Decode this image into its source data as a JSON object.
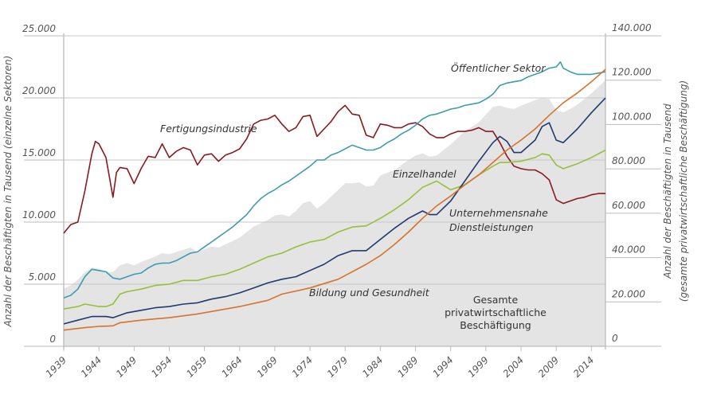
{
  "chart_data": {
    "type": "line",
    "title": "",
    "xlabel": "",
    "ylabel": "Anzahl der Beschäftigten in Tausend (einzelne Sektoren)",
    "ylabel_right": [
      "Anzahl der Beschäftigten in Tausend",
      "(gesamte privatwirtschaftliche Beschäftigung)"
    ],
    "xlim": [
      1939,
      2016
    ],
    "ylim": [
      0,
      25000
    ],
    "ylim_right": [
      0,
      140000
    ],
    "x_ticks": [
      "1939",
      "1944",
      "1949",
      "1954",
      "1959",
      "1964",
      "1969",
      "1974",
      "1979",
      "1984",
      "1989",
      "1994",
      "1999",
      "2004",
      "2009",
      "2014"
    ],
    "y_ticks_left": [
      "0",
      "5.000",
      "10.000",
      "15.000",
      "20.000",
      "25.000"
    ],
    "y_ticks_right": [
      "0",
      "20.000",
      "40.000",
      "60.000",
      "80.000",
      "100.000",
      "120.000",
      "140.000"
    ],
    "grid": true,
    "legend": "inline labels",
    "area": {
      "name": "Gesamte privatwirtschaftliche Beschäftigung",
      "label_lines": [
        "Gesamte",
        "privatwirtschaftliche",
        "Beschäftigung"
      ],
      "axis": "right",
      "color": "#e4e4e4",
      "x": [
        1939,
        1940,
        1941,
        1942,
        1943,
        1944,
        1945,
        1946,
        1947,
        1948,
        1949,
        1950,
        1952,
        1953,
        1954,
        1956,
        1957,
        1958,
        1960,
        1961,
        1962,
        1964,
        1966,
        1968,
        1969,
        1970,
        1971,
        1972,
        1973,
        1974,
        1975,
        1976,
        1978,
        1979,
        1980,
        1981,
        1982,
        1983,
        1984,
        1986,
        1988,
        1989,
        1990,
        1991,
        1992,
        1994,
        1996,
        1998,
        2000,
        2001,
        2002,
        2003,
        2004,
        2006,
        2007,
        2008,
        2009,
        2010,
        2011,
        2012,
        2014,
        2016
      ],
      "values": [
        26000,
        27500,
        30000,
        33500,
        35500,
        35000,
        33500,
        33500,
        36500,
        37500,
        36500,
        38000,
        40500,
        42000,
        41500,
        43500,
        44500,
        42500,
        45000,
        44500,
        46000,
        49000,
        54000,
        57000,
        59000,
        59500,
        58500,
        61000,
        64500,
        65500,
        62000,
        64500,
        70500,
        73500,
        73500,
        74000,
        72000,
        72500,
        77000,
        79500,
        84000,
        86000,
        87000,
        85500,
        86000,
        91000,
        97000,
        101000,
        108000,
        108500,
        107500,
        107000,
        108500,
        111000,
        112000,
        111500,
        106500,
        105500,
        107000,
        109000,
        114000,
        120000
      ]
    },
    "series": [
      {
        "name": "Fertigungsindustrie",
        "axis": "left",
        "color": "#8b1a1f",
        "x": [
          1939,
          1940,
          1941,
          1942,
          1943,
          1943.5,
          1944,
          1945,
          1946,
          1946.5,
          1947,
          1948,
          1949,
          1950,
          1951,
          1952,
          1953,
          1954,
          1955,
          1956,
          1957,
          1958,
          1959,
          1960,
          1961,
          1962,
          1963,
          1964,
          1965,
          1966,
          1967,
          1968,
          1969,
          1970,
          1971,
          1972,
          1973,
          1974,
          1975,
          1976,
          1977,
          1978,
          1979,
          1980,
          1981,
          1982,
          1983,
          1984,
          1985,
          1986,
          1987,
          1988,
          1989,
          1990,
          1991,
          1992,
          1993,
          1994,
          1995,
          1996,
          1997,
          1998,
          1999,
          2000,
          2001,
          2002,
          2003,
          2004,
          2005,
          2006,
          2007,
          2008,
          2009,
          2010,
          2011,
          2012,
          2013,
          2014,
          2015,
          2016
        ],
        "values": [
          9100,
          9800,
          10000,
          12500,
          15500,
          16500,
          16300,
          15200,
          12000,
          14000,
          14400,
          14300,
          13100,
          14300,
          15300,
          15200,
          16300,
          15200,
          15700,
          16000,
          15800,
          14600,
          15400,
          15500,
          14900,
          15400,
          15600,
          15900,
          16700,
          17900,
          18200,
          18300,
          18600,
          17900,
          17300,
          17600,
          18500,
          18600,
          16900,
          17500,
          18100,
          18900,
          19400,
          18700,
          18600,
          17000,
          16800,
          17900,
          17800,
          17600,
          17600,
          17900,
          18000,
          17700,
          17100,
          16800,
          16800,
          17100,
          17300,
          17300,
          17400,
          17600,
          17300,
          17300,
          16400,
          15300,
          14500,
          14300,
          14200,
          14200,
          13900,
          13400,
          11800,
          11500,
          11700,
          11900,
          12000,
          12200,
          12300,
          12300
        ]
      },
      {
        "name": "Öffentlicher Sektor",
        "axis": "left",
        "color": "#3c9db0",
        "x": [
          1939,
          1940,
          1941,
          1942,
          1943,
          1944,
          1945,
          1946,
          1947,
          1948,
          1949,
          1950,
          1951,
          1952,
          1953,
          1954,
          1955,
          1956,
          1957,
          1958,
          1959,
          1960,
          1961,
          1962,
          1963,
          1964,
          1965,
          1966,
          1967,
          1968,
          1969,
          1970,
          1971,
          1972,
          1973,
          1974,
          1975,
          1976,
          1977,
          1978,
          1979,
          1980,
          1981,
          1982,
          1983,
          1984,
          1985,
          1986,
          1987,
          1988,
          1989,
          1990,
          1991,
          1992,
          1993,
          1994,
          1995,
          1996,
          1997,
          1998,
          1999,
          2000,
          2001,
          2002,
          2003,
          2004,
          2005,
          2006,
          2007,
          2008,
          2009,
          2009.6,
          2010,
          2011,
          2012,
          2013,
          2014,
          2015,
          2016
        ],
        "values": [
          3900,
          4100,
          4600,
          5600,
          6200,
          6100,
          6000,
          5500,
          5400,
          5600,
          5800,
          5900,
          6300,
          6600,
          6700,
          6700,
          6900,
          7200,
          7500,
          7600,
          8000,
          8400,
          8800,
          9200,
          9600,
          10100,
          10600,
          11300,
          11900,
          12300,
          12600,
          13000,
          13300,
          13700,
          14100,
          14500,
          15000,
          15000,
          15400,
          15600,
          15900,
          16200,
          16000,
          15800,
          15800,
          16000,
          16400,
          16700,
          17100,
          17400,
          17800,
          18300,
          18600,
          18700,
          18900,
          19100,
          19200,
          19400,
          19500,
          19600,
          19900,
          20300,
          21000,
          21200,
          21300,
          21400,
          21700,
          21900,
          22100,
          22400,
          22500,
          22900,
          22400,
          22100,
          21900,
          21900,
          21900,
          22000,
          22100
        ]
      },
      {
        "name": "Einzelhandel",
        "axis": "left",
        "color": "#98bf3c",
        "x": [
          1939,
          1940,
          1941,
          1942,
          1943,
          1944,
          1945,
          1946,
          1947,
          1948,
          1950,
          1952,
          1954,
          1956,
          1958,
          1960,
          1962,
          1964,
          1966,
          1968,
          1970,
          1972,
          1974,
          1976,
          1978,
          1980,
          1982,
          1984,
          1986,
          1988,
          1990,
          1992,
          1994,
          1996,
          1998,
          2000,
          2001,
          2002,
          2004,
          2006,
          2007,
          2008,
          2009,
          2010,
          2012,
          2014,
          2016
        ],
        "values": [
          3000,
          3100,
          3200,
          3400,
          3300,
          3200,
          3200,
          3400,
          4200,
          4400,
          4600,
          4900,
          5000,
          5300,
          5300,
          5600,
          5800,
          6200,
          6700,
          7200,
          7500,
          8000,
          8400,
          8600,
          9200,
          9600,
          9700,
          10300,
          11000,
          11800,
          12800,
          13300,
          12600,
          13000,
          13800,
          14500,
          14800,
          14800,
          14900,
          15200,
          15500,
          15400,
          14600,
          14300,
          14700,
          15200,
          15800
        ]
      },
      {
        "name": "Unternehmensnahe Dienstleistungen",
        "axis": "left",
        "color": "#1f3a6e",
        "x": [
          1939,
          1941,
          1943,
          1945,
          1946,
          1948,
          1950,
          1952,
          1954,
          1956,
          1958,
          1960,
          1962,
          1964,
          1966,
          1968,
          1970,
          1972,
          1974,
          1976,
          1978,
          1980,
          1982,
          1984,
          1986,
          1988,
          1990,
          1991,
          1992,
          1994,
          1996,
          1998,
          2000,
          2001,
          2002,
          2003,
          2004,
          2006,
          2007,
          2008,
          2009,
          2010,
          2012,
          2014,
          2016
        ],
        "values": [
          1800,
          2100,
          2400,
          2400,
          2300,
          2700,
          2900,
          3100,
          3200,
          3400,
          3500,
          3800,
          4000,
          4300,
          4700,
          5100,
          5400,
          5600,
          6100,
          6600,
          7300,
          7700,
          7700,
          8600,
          9500,
          10300,
          10900,
          10600,
          10600,
          11700,
          13300,
          14900,
          16400,
          16900,
          16500,
          15600,
          15600,
          16600,
          17700,
          18000,
          16600,
          16400,
          17500,
          18800,
          20000
        ]
      },
      {
        "name": "Bildung und Gesundheit",
        "axis": "left",
        "color": "#d9722b",
        "x": [
          1939,
          1942,
          1944,
          1946,
          1947,
          1950,
          1954,
          1958,
          1960,
          1964,
          1968,
          1970,
          1974,
          1978,
          1980,
          1982,
          1984,
          1986,
          1988,
          1990,
          1992,
          1994,
          1996,
          1998,
          2000,
          2002,
          2004,
          2006,
          2008,
          2010,
          2012,
          2014,
          2016
        ],
        "values": [
          1300,
          1500,
          1600,
          1650,
          1900,
          2100,
          2300,
          2600,
          2800,
          3200,
          3700,
          4200,
          4700,
          5400,
          6000,
          6600,
          7300,
          8200,
          9200,
          10300,
          11300,
          12100,
          13000,
          13800,
          14800,
          15800,
          16600,
          17500,
          18600,
          19600,
          20400,
          21300,
          22300
        ]
      }
    ],
    "annotations": [
      {
        "text": "Fertigungsindustrie",
        "series": "Fertigungsindustrie"
      },
      {
        "text": "Öffentlicher Sektor",
        "series": "Öffentlicher Sektor"
      },
      {
        "text": "Einzelhandel",
        "series": "Einzelhandel"
      },
      {
        "text": "Unternehmensnahe",
        "series": "Unternehmensnahe Dienstleistungen"
      },
      {
        "text": "Dienstleistungen",
        "series": "Unternehmensnahe Dienstleistungen"
      },
      {
        "text": "Bildung und Gesundheit",
        "series": "Bildung und Gesundheit"
      }
    ]
  }
}
